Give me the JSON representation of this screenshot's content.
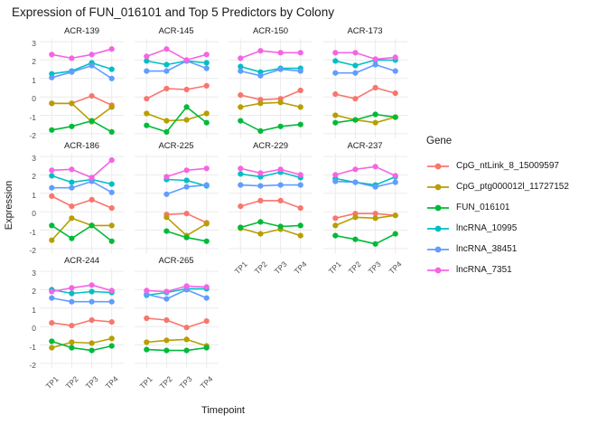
{
  "chart_data": {
    "type": "line",
    "title": "Expression of FUN_016101 and Top 5 Predictors by Colony",
    "xlabel": "Timepoint",
    "ylabel": "Expression",
    "legend_title": "Gene",
    "legend_position": "right",
    "grid": true,
    "x_categories": [
      "TP1",
      "TP2",
      "TP3",
      "TP4"
    ],
    "y_ticks": [
      3,
      2,
      1,
      0,
      -1,
      -2
    ],
    "ylim": [
      -2.25,
      3.15
    ],
    "series_info": [
      {
        "name": "CpG_ntLink_8_15009597",
        "color": "#F8766D"
      },
      {
        "name": "CpG_ptg000012l_11727152",
        "color": "#B79F00"
      },
      {
        "name": "FUN_016101",
        "color": "#00BA38"
      },
      {
        "name": "lncRNA_10995",
        "color": "#00BFC4"
      },
      {
        "name": "lncRNA_38451",
        "color": "#619CFF"
      },
      {
        "name": "lncRNA_7351",
        "color": "#F564E2"
      }
    ],
    "facets": [
      {
        "name": "ACR-139",
        "row": 0,
        "col": 0,
        "show_y_axis": true,
        "show_x_axis": false,
        "values": {
          "CpG_ntLink_8_15009597": [
            -0.35,
            -0.35,
            0.05,
            -0.45
          ],
          "CpG_ptg000012l_11727152": [
            -0.35,
            -0.35,
            -1.35,
            -0.55
          ],
          "FUN_016101": [
            -1.8,
            -1.6,
            -1.3,
            -1.9
          ],
          "lncRNA_10995": [
            1.25,
            1.4,
            1.85,
            1.5
          ],
          "lncRNA_38451": [
            1.05,
            1.35,
            1.7,
            1.0
          ],
          "lncRNA_7351": [
            2.3,
            2.1,
            2.3,
            2.6
          ]
        }
      },
      {
        "name": "ACR-145",
        "row": 0,
        "col": 1,
        "show_y_axis": false,
        "show_x_axis": false,
        "values": {
          "CpG_ntLink_8_15009597": [
            -0.1,
            0.45,
            0.4,
            0.6
          ],
          "CpG_ptg000012l_11727152": [
            -0.9,
            -1.3,
            -1.25,
            -0.9
          ],
          "FUN_016101": [
            -1.55,
            -1.9,
            -0.55,
            -1.4
          ],
          "lncRNA_10995": [
            1.95,
            1.75,
            1.95,
            1.85
          ],
          "lncRNA_38451": [
            1.4,
            1.4,
            1.95,
            1.55
          ],
          "lncRNA_7351": [
            2.2,
            2.6,
            2.0,
            2.3
          ]
        }
      },
      {
        "name": "ACR-150",
        "row": 0,
        "col": 2,
        "show_y_axis": false,
        "show_x_axis": false,
        "values": {
          "CpG_ntLink_8_15009597": [
            0.1,
            -0.15,
            -0.1,
            0.35
          ],
          "CpG_ptg000012l_11727152": [
            -0.55,
            -0.35,
            -0.3,
            -0.55
          ],
          "FUN_016101": [
            -1.3,
            -1.85,
            -1.6,
            -1.5
          ],
          "lncRNA_10995": [
            1.65,
            1.35,
            1.55,
            1.55
          ],
          "lncRNA_38451": [
            1.4,
            1.15,
            1.5,
            1.4
          ],
          "lncRNA_7351": [
            2.1,
            2.5,
            2.4,
            2.4
          ]
        }
      },
      {
        "name": "ACR-173",
        "row": 0,
        "col": 3,
        "show_y_axis": false,
        "show_x_axis": false,
        "values": {
          "CpG_ntLink_8_15009597": [
            0.15,
            -0.1,
            0.5,
            0.2
          ],
          "CpG_ptg000012l_11727152": [
            -1.0,
            -1.25,
            -1.4,
            -1.1
          ],
          "FUN_016101": [
            -1.4,
            -1.25,
            -0.95,
            -1.1
          ],
          "lncRNA_10995": [
            1.95,
            1.7,
            2.0,
            2.0
          ],
          "lncRNA_38451": [
            1.3,
            1.3,
            1.75,
            1.4
          ],
          "lncRNA_7351": [
            2.4,
            2.4,
            2.05,
            2.15
          ]
        }
      },
      {
        "name": "ACR-186",
        "row": 1,
        "col": 0,
        "show_y_axis": true,
        "show_x_axis": false,
        "values": {
          "CpG_ntLink_8_15009597": [
            0.85,
            0.3,
            0.65,
            0.2
          ],
          "CpG_ptg000012l_11727152": [
            -1.55,
            -0.35,
            -0.75,
            -0.75
          ],
          "FUN_016101": [
            -0.75,
            -1.45,
            -0.75,
            -1.6
          ],
          "lncRNA_10995": [
            1.95,
            1.6,
            1.75,
            1.5
          ],
          "lncRNA_38451": [
            1.3,
            1.3,
            1.65,
            1.05
          ],
          "lncRNA_7351": [
            2.25,
            2.3,
            1.85,
            2.8
          ]
        }
      },
      {
        "name": "ACR-225",
        "row": 1,
        "col": 1,
        "show_y_axis": false,
        "show_x_axis": false,
        "values": {
          "CpG_ntLink_8_15009597": [
            null,
            -0.15,
            -0.1,
            -0.6
          ],
          "CpG_ptg000012l_11727152": [
            null,
            -0.3,
            -1.3,
            -0.65
          ],
          "FUN_016101": [
            null,
            -1.05,
            -1.4,
            -1.6
          ],
          "lncRNA_10995": [
            null,
            1.75,
            1.7,
            1.4
          ],
          "lncRNA_38451": [
            null,
            0.95,
            1.35,
            1.45
          ],
          "lncRNA_7351": [
            null,
            1.9,
            2.25,
            2.35
          ]
        }
      },
      {
        "name": "ACR-229",
        "row": 1,
        "col": 2,
        "show_y_axis": false,
        "show_x_axis": true,
        "values": {
          "CpG_ntLink_8_15009597": [
            0.3,
            0.6,
            0.6,
            0.2
          ],
          "CpG_ptg000012l_11727152": [
            -0.9,
            -1.2,
            -0.95,
            -1.3
          ],
          "FUN_016101": [
            -0.85,
            -0.55,
            -0.8,
            -0.75
          ],
          "lncRNA_10995": [
            2.05,
            1.9,
            2.15,
            1.85
          ],
          "lncRNA_38451": [
            1.45,
            1.4,
            1.45,
            1.45
          ],
          "lncRNA_7351": [
            2.35,
            2.1,
            2.3,
            2.0
          ]
        }
      },
      {
        "name": "ACR-237",
        "row": 1,
        "col": 3,
        "show_y_axis": false,
        "show_x_axis": true,
        "values": {
          "CpG_ntLink_8_15009597": [
            -0.35,
            -0.1,
            -0.1,
            -0.2
          ],
          "CpG_ptg000012l_11727152": [
            -0.75,
            -0.3,
            -0.35,
            -0.2
          ],
          "FUN_016101": [
            -1.3,
            -1.5,
            -1.75,
            -1.2
          ],
          "lncRNA_10995": [
            1.8,
            1.6,
            1.45,
            1.9
          ],
          "lncRNA_38451": [
            1.65,
            1.6,
            1.35,
            1.6
          ],
          "lncRNA_7351": [
            2.0,
            2.3,
            2.45,
            1.95
          ]
        }
      },
      {
        "name": "ACR-244",
        "row": 2,
        "col": 0,
        "show_y_axis": true,
        "show_x_axis": true,
        "values": {
          "CpG_ntLink_8_15009597": [
            0.2,
            0.05,
            0.35,
            0.25
          ],
          "CpG_ptg000012l_11727152": [
            -1.15,
            -0.85,
            -0.9,
            -0.65
          ],
          "FUN_016101": [
            -0.8,
            -1.15,
            -1.3,
            -1.05
          ],
          "lncRNA_10995": [
            2.0,
            1.8,
            1.9,
            1.85
          ],
          "lncRNA_38451": [
            1.55,
            1.35,
            1.35,
            1.35
          ],
          "lncRNA_7351": [
            1.9,
            2.1,
            2.25,
            1.95
          ]
        }
      },
      {
        "name": "ACR-265",
        "row": 2,
        "col": 1,
        "show_y_axis": false,
        "show_x_axis": true,
        "values": {
          "CpG_ntLink_8_15009597": [
            0.45,
            0.35,
            -0.05,
            0.3
          ],
          "CpG_ptg000012l_11727152": [
            -0.85,
            -0.75,
            -0.7,
            -1.05
          ],
          "FUN_016101": [
            -1.25,
            -1.3,
            -1.3,
            -1.15
          ],
          "lncRNA_10995": [
            1.7,
            1.85,
            2.05,
            2.05
          ],
          "lncRNA_38451": [
            1.75,
            1.5,
            2.0,
            1.55
          ],
          "lncRNA_7351": [
            1.95,
            1.9,
            2.2,
            2.15
          ]
        }
      }
    ],
    "style": {
      "gridline_color": "#EBEBEB",
      "tick_label_color": "#4d4d4d"
    }
  }
}
